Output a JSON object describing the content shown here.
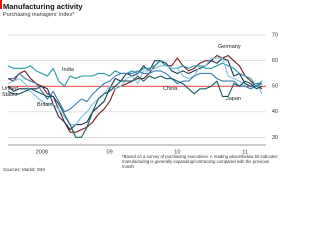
{
  "chart_data": {
    "type": "line",
    "title": "Manufacturing activity",
    "subtitle": "Purchasing managers' index*",
    "footnote": "*Based on a survey of purchasing executives. A reading above/below 50 indicates manufacturing is generally expanding/contracting compared with the previous month",
    "sources": "Sources: Markit; ISM",
    "categories": [
      null,
      null,
      null,
      null,
      null,
      null,
      "2008",
      null,
      null,
      null,
      null,
      null,
      null,
      null,
      null,
      null,
      null,
      null,
      "09",
      null,
      null,
      null,
      null,
      null,
      null,
      null,
      null,
      null,
      null,
      null,
      "10",
      null,
      null,
      null,
      null,
      null,
      null,
      null,
      null,
      null,
      null,
      null,
      "11",
      null,
      null,
      null
    ],
    "ylim": [
      27,
      72
    ],
    "yticks": [
      30,
      40,
      50,
      60,
      70
    ],
    "grid": true,
    "ref_line": 50,
    "ref_color": "#e3120b",
    "series": [
      {
        "name": "Germany",
        "color": "#7b1c1c",
        "values": [
          53,
          52,
          55,
          56,
          53,
          51,
          50,
          47,
          46,
          41,
          36,
          32,
          32,
          33,
          34,
          36,
          39,
          41,
          44,
          49,
          50,
          51,
          52,
          53,
          53,
          55,
          58,
          60,
          58,
          58,
          61,
          58,
          56,
          57,
          59,
          60,
          60,
          62,
          61,
          62,
          60,
          58,
          54,
          52,
          50,
          49
        ]
      },
      {
        "name": "United States",
        "color": "#1b3655",
        "values": [
          50,
          48,
          49,
          49,
          49,
          49,
          50,
          49,
          43,
          38,
          36,
          33,
          35,
          35,
          36,
          40,
          42,
          44,
          49,
          53,
          52,
          55,
          54,
          55,
          58,
          56,
          60,
          60,
          59,
          56,
          55,
          56,
          55,
          56,
          57,
          58,
          60,
          59,
          61,
          60,
          54,
          55,
          51,
          50,
          51,
          51
        ]
      },
      {
        "name": "India",
        "color": "#1f9aa3",
        "values": [
          58,
          57,
          57,
          57,
          58,
          56,
          55,
          54,
          57,
          52,
          50,
          54,
          53,
          54,
          54,
          54,
          55,
          55,
          54,
          56,
          55,
          55,
          56,
          55,
          57,
          57,
          58,
          60,
          58,
          57,
          57,
          58,
          57,
          58,
          58,
          57,
          57,
          58,
          59,
          58,
          57,
          55,
          54,
          53,
          50,
          52
        ]
      },
      {
        "name": "Britain",
        "color": "#7cc3e3",
        "values": [
          51,
          52,
          53,
          51,
          48,
          46,
          44,
          43,
          43,
          41,
          38,
          35,
          35,
          38,
          40,
          43,
          45,
          47,
          50,
          49,
          50,
          53,
          54,
          51,
          56,
          56,
          57,
          58,
          58,
          57,
          57,
          54,
          53,
          54,
          58,
          58,
          61,
          61,
          61,
          54,
          53,
          52,
          50,
          49,
          51,
          47
        ]
      },
      {
        "name": "China",
        "color": "#3a7db8",
        "values": [
          53,
          53,
          55,
          53,
          52,
          51,
          48,
          45,
          48,
          44,
          40,
          41,
          43,
          45,
          44,
          47,
          49,
          51,
          52,
          54,
          55,
          55,
          55,
          56,
          55,
          55,
          56,
          56,
          55,
          53,
          51,
          52,
          52,
          54,
          55,
          55,
          55,
          53,
          52,
          52,
          52,
          50,
          50,
          49,
          50,
          51
        ]
      },
      {
        "name": "Japan",
        "color": "#0c5a60",
        "values": [
          48,
          47,
          47,
          48,
          49,
          48,
          47,
          46,
          46,
          43,
          39,
          35,
          30,
          30,
          34,
          40,
          45,
          47,
          48,
          50,
          52,
          52,
          52,
          54,
          52,
          54,
          53,
          54,
          53,
          53,
          52,
          51,
          49,
          47,
          49,
          49,
          50,
          52,
          46,
          46,
          51,
          50,
          52,
          51,
          49,
          50
        ]
      }
    ]
  }
}
